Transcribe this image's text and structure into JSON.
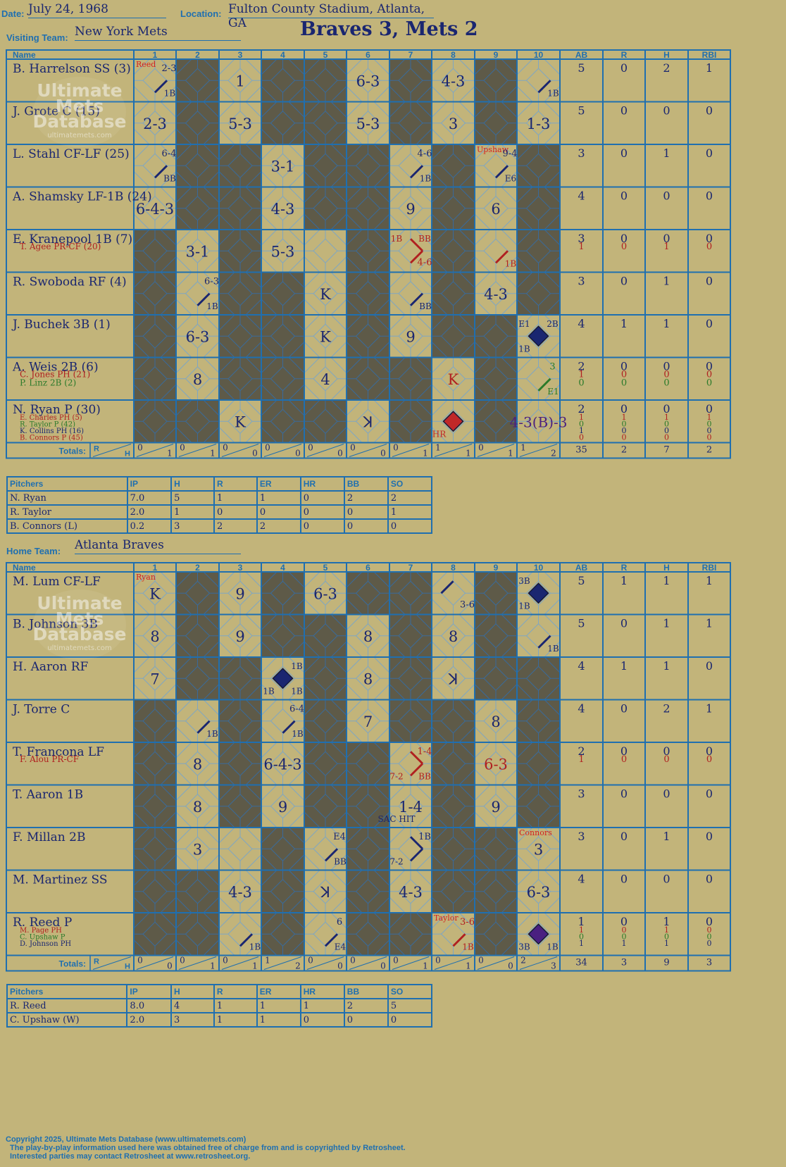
{
  "header": {
    "date_label": "Date:",
    "date": "July 24, 1968",
    "location_label": "Location:",
    "location": "Fulton County Stadium, Atlanta, GA",
    "visiting_label": "Visiting Team:",
    "visiting_team": "New York Mets",
    "home_label": "Home Team:",
    "home_team": "Atlanta Braves",
    "result": "Braves 3, Mets 2"
  },
  "watermark": {
    "line1": "Ultimate",
    "line2": "Mets",
    "line3": "Database",
    "url": "ultimatemets.com"
  },
  "grid_headers": {
    "name": "Name",
    "innings": [
      "1",
      "2",
      "3",
      "4",
      "5",
      "6",
      "7",
      "8",
      "9",
      "10"
    ],
    "stats": [
      "AB",
      "R",
      "H",
      "RBI"
    ],
    "totals": "Totals:",
    "r": "R",
    "h": "H"
  },
  "visitors": {
    "rows": [
      {
        "players": [
          {
            "name": "B. Harrelson SS (3)",
            "color": "#1a2670",
            "stats": [
              "5",
              "0",
              "2",
              "1"
            ]
          }
        ],
        "cells": [
          {
            "i": 1,
            "t": "2-3",
            "pos": "tr",
            "sub": "1B",
            "path": "1"
          },
          {
            "i": 3,
            "t": "1"
          },
          {
            "i": 6,
            "t": "6-3"
          },
          {
            "i": 8,
            "t": "4-3"
          },
          {
            "i": 10,
            "sub": "1B",
            "path": "1"
          }
        ],
        "notes": [
          {
            "i": 1,
            "t": "Reed",
            "color": "#d42020"
          }
        ]
      },
      {
        "players": [
          {
            "name": "J. Grote C (15)",
            "color": "#1a2670",
            "stats": [
              "5",
              "0",
              "0",
              "0"
            ]
          }
        ],
        "cells": [
          {
            "i": 1,
            "t": "2-3"
          },
          {
            "i": 3,
            "t": "5-3"
          },
          {
            "i": 6,
            "t": "5-3"
          },
          {
            "i": 8,
            "t": "3"
          },
          {
            "i": 10,
            "t": "1-3"
          }
        ]
      },
      {
        "players": [
          {
            "name": "L. Stahl CF-LF (25)",
            "color": "#1a2670",
            "stats": [
              "3",
              "0",
              "1",
              "0"
            ]
          }
        ],
        "cells": [
          {
            "i": 1,
            "t": "6-4",
            "pos": "tr",
            "sub": "BB",
            "path": "1"
          },
          {
            "i": 4,
            "t": "3-1"
          },
          {
            "i": 7,
            "t": "4-6",
            "pos": "tr",
            "sub": "1B",
            "path": "1"
          },
          {
            "i": 9,
            "t": "9-4",
            "pos": "tr",
            "sub": "E6",
            "path": "1"
          }
        ],
        "notes": [
          {
            "i": 9,
            "t": "Upshaw",
            "color": "#d42020"
          }
        ]
      },
      {
        "players": [
          {
            "name": "A. Shamsky LF-1B (24)",
            "color": "#1a2670",
            "stats": [
              "4",
              "0",
              "0",
              "0"
            ]
          }
        ],
        "cells": [
          {
            "i": 1,
            "t": "6-4-3"
          },
          {
            "i": 4,
            "t": "4-3"
          },
          {
            "i": 7,
            "t": "9"
          },
          {
            "i": 9,
            "t": "6"
          }
        ]
      },
      {
        "players": [
          {
            "name": "E. Kranepool 1B (7)",
            "color": "#1a2670",
            "stats": [
              "3",
              "0",
              "0",
              "0"
            ]
          },
          {
            "name": "T. Agee PR-CF (20)",
            "color": "#b02020",
            "stats": [
              "1",
              "0",
              "1",
              "0"
            ]
          }
        ],
        "cells": [
          {
            "i": 2,
            "t": "3-1"
          },
          {
            "i": 4,
            "t": "5-3"
          },
          {
            "i": 7,
            "t": "4-6",
            "pos": "br",
            "tl": "1B",
            "tr": "BB",
            "path": "2",
            "color": "#b02020"
          },
          {
            "i": 9,
            "sub": "1B",
            "path": "1",
            "color": "#b02020"
          }
        ]
      },
      {
        "players": [
          {
            "name": "R. Swoboda RF (4)",
            "color": "#1a2670",
            "stats": [
              "3",
              "0",
              "1",
              "0"
            ]
          }
        ],
        "cells": [
          {
            "i": 2,
            "t": "6-3",
            "pos": "tr",
            "sub": "1B",
            "path": "1"
          },
          {
            "i": 5,
            "t": "K"
          },
          {
            "i": 7,
            "sub": "BB",
            "path": "1"
          },
          {
            "i": 9,
            "t": "4-3"
          }
        ]
      },
      {
        "players": [
          {
            "name": "J. Buchek 3B (1)",
            "color": "#1a2670",
            "stats": [
              "4",
              "1",
              "1",
              "0"
            ]
          }
        ],
        "cells": [
          {
            "i": 2,
            "t": "6-3"
          },
          {
            "i": 5,
            "t": "K"
          },
          {
            "i": 7,
            "t": "9"
          },
          {
            "i": 10,
            "run": "#1a2670",
            "tl": "E1",
            "tr": "2B",
            "bl": "1B"
          }
        ]
      },
      {
        "players": [
          {
            "name": "A. Weis 2B (6)",
            "color": "#1a2670",
            "stats": [
              "2",
              "0",
              "0",
              "0"
            ]
          },
          {
            "name": "C. Jones PH (21)",
            "color": "#b02020",
            "stats": [
              "1",
              "0",
              "0",
              "0"
            ]
          },
          {
            "name": "P. Linz 2B (2)",
            "color": "#2a7a2a",
            "stats": [
              "0",
              "0",
              "0",
              "0"
            ]
          }
        ],
        "cells": [
          {
            "i": 2,
            "t": "8"
          },
          {
            "i": 5,
            "t": "4"
          },
          {
            "i": 8,
            "t": "K",
            "color": "#b02020"
          },
          {
            "i": 10,
            "t": "3",
            "pos": "tr",
            "sub": "E1",
            "path": "1",
            "color": "#2a7a2a"
          }
        ]
      },
      {
        "players": [
          {
            "name": "N. Ryan P (30)",
            "color": "#1a2670",
            "stats": [
              "2",
              "0",
              "0",
              "0"
            ]
          },
          {
            "name": "E. Charles PH (5)",
            "color": "#b02020",
            "stats": [
              "1",
              "1",
              "1",
              "1"
            ]
          },
          {
            "name": "R. Taylor P (42)",
            "color": "#2a7a2a",
            "stats": [
              "0",
              "0",
              "0",
              "0"
            ]
          },
          {
            "name": "K. Collins PH (16)",
            "color": "#1a2670",
            "stats": [
              "1",
              "0",
              "0",
              "0"
            ]
          },
          {
            "name": "B. Connors P (45)",
            "color": "#b02020",
            "stats": [
              "0",
              "0",
              "0",
              "0"
            ]
          }
        ],
        "cells": [
          {
            "i": 3,
            "t": "K"
          },
          {
            "i": 6,
            "t": "ꓘ"
          },
          {
            "i": 8,
            "run": "#c02828",
            "bl": "HR",
            "color": "#c02828"
          },
          {
            "i": 10,
            "t": "4-3(B)-3",
            "color": "#4a2080"
          }
        ]
      }
    ],
    "totals": [
      [
        "0",
        "1"
      ],
      [
        "0",
        "1"
      ],
      [
        "0",
        "0"
      ],
      [
        "0",
        "0"
      ],
      [
        "0",
        "0"
      ],
      [
        "0",
        "0"
      ],
      [
        "0",
        "1"
      ],
      [
        "1",
        "1"
      ],
      [
        "0",
        "1"
      ],
      [
        "1",
        "2"
      ]
    ],
    "total_stats": [
      "35",
      "2",
      "7",
      "2"
    ],
    "pitchers": {
      "headers": [
        "Pitchers",
        "IP",
        "H",
        "R",
        "ER",
        "HR",
        "BB",
        "SO"
      ],
      "rows": [
        [
          "N. Ryan",
          "7.0",
          "5",
          "1",
          "1",
          "0",
          "2",
          "2"
        ],
        [
          "R. Taylor",
          "2.0",
          "1",
          "0",
          "0",
          "0",
          "0",
          "1"
        ],
        [
          "B. Connors (L)",
          "0.2",
          "3",
          "2",
          "2",
          "0",
          "0",
          "0"
        ]
      ]
    }
  },
  "home": {
    "rows": [
      {
        "players": [
          {
            "name": "M. Lum CF-LF",
            "color": "#1a2670",
            "stats": [
              "5",
              "1",
              "1",
              "1"
            ]
          }
        ],
        "cells": [
          {
            "i": 1,
            "t": "K"
          },
          {
            "i": 3,
            "t": "9"
          },
          {
            "i": 5,
            "t": "6-3"
          },
          {
            "i": 8,
            "t": "3-6",
            "pos": "br",
            "path": "3"
          },
          {
            "i": 10,
            "run": "#1a2670",
            "tl": "3B",
            "bl": "1B"
          }
        ],
        "notes": [
          {
            "i": 1,
            "t": "Ryan",
            "color": "#d42020"
          }
        ]
      },
      {
        "players": [
          {
            "name": "B. Johnson 3B",
            "color": "#1a2670",
            "stats": [
              "5",
              "0",
              "1",
              "1"
            ]
          }
        ],
        "cells": [
          {
            "i": 1,
            "t": "8"
          },
          {
            "i": 3,
            "t": "9"
          },
          {
            "i": 6,
            "t": "8"
          },
          {
            "i": 8,
            "t": "8"
          },
          {
            "i": 10,
            "sub": "1B",
            "path": "1"
          }
        ]
      },
      {
        "players": [
          {
            "name": "H. Aaron RF",
            "color": "#1a2670",
            "stats": [
              "4",
              "1",
              "1",
              "0"
            ]
          }
        ],
        "cells": [
          {
            "i": 1,
            "t": "7"
          },
          {
            "i": 4,
            "run": "#1a2670",
            "tr": "1B",
            "bl": "1B",
            "br": "1B"
          },
          {
            "i": 6,
            "t": "8"
          },
          {
            "i": 8,
            "t": "ꓘ"
          }
        ]
      },
      {
        "players": [
          {
            "name": "J. Torre C",
            "color": "#1a2670",
            "stats": [
              "4",
              "0",
              "2",
              "1"
            ]
          }
        ],
        "cells": [
          {
            "i": 2,
            "sub": "1B",
            "path": "1"
          },
          {
            "i": 4,
            "t": "6-4",
            "pos": "tr",
            "sub": "1B",
            "path": "1"
          },
          {
            "i": 6,
            "t": "7"
          },
          {
            "i": 9,
            "t": "8"
          }
        ]
      },
      {
        "players": [
          {
            "name": "T. Francona LF",
            "color": "#1a2670",
            "stats": [
              "2",
              "0",
              "0",
              "0"
            ]
          },
          {
            "name": "F. Alou PR-CF",
            "color": "#b02020",
            "stats": [
              "1",
              "0",
              "0",
              "0"
            ]
          }
        ],
        "cells": [
          {
            "i": 2,
            "t": "8"
          },
          {
            "i": 4,
            "t": "6-4-3"
          },
          {
            "i": 7,
            "t": "1-4",
            "pos": "tr",
            "bl": "7-2",
            "br": "BB",
            "path": "2",
            "color": "#b02020"
          },
          {
            "i": 9,
            "t": "6-3",
            "color": "#b02020"
          }
        ]
      },
      {
        "players": [
          {
            "name": "T. Aaron 1B",
            "color": "#1a2670",
            "stats": [
              "3",
              "0",
              "0",
              "0"
            ]
          }
        ],
        "cells": [
          {
            "i": 2,
            "t": "8"
          },
          {
            "i": 4,
            "t": "9"
          },
          {
            "i": 7,
            "t": "1-4",
            "bl": "SAC HIT"
          },
          {
            "i": 9,
            "t": "9"
          }
        ]
      },
      {
        "players": [
          {
            "name": "F. Millan 2B",
            "color": "#1a2670",
            "stats": [
              "3",
              "0",
              "1",
              "0"
            ]
          }
        ],
        "cells": [
          {
            "i": 2,
            "t": "3"
          },
          {
            "i": 5,
            "t": "E4",
            "pos": "tr",
            "sub": "BB",
            "path": "1"
          },
          {
            "i": 7,
            "t": "1B",
            "pos": "tr",
            "bl": "7-2",
            "path": "2"
          },
          {
            "i": 10,
            "t": "3"
          }
        ],
        "notes": [
          {
            "i": 10,
            "t": "Connors",
            "color": "#d42020"
          }
        ]
      },
      {
        "players": [
          {
            "name": "M. Martinez SS",
            "color": "#1a2670",
            "stats": [
              "4",
              "0",
              "0",
              "0"
            ]
          }
        ],
        "cells": [
          {
            "i": 3,
            "t": "4-3"
          },
          {
            "i": 5,
            "t": "ꓘ"
          },
          {
            "i": 7,
            "t": "4-3"
          },
          {
            "i": 10,
            "t": "6-3"
          }
        ]
      },
      {
        "players": [
          {
            "name": "R. Reed P",
            "color": "#1a2670",
            "stats": [
              "1",
              "0",
              "1",
              "0"
            ]
          },
          {
            "name": "M. Page PH",
            "color": "#b02020",
            "stats": [
              "1",
              "0",
              "1",
              "0"
            ]
          },
          {
            "name": "C. Upshaw P",
            "color": "#2a7a2a",
            "stats": [
              "0",
              "0",
              "0",
              "0"
            ]
          },
          {
            "name": "D. Johnson PH",
            "color": "#1a2670",
            "stats": [
              "1",
              "1",
              "1",
              "0"
            ]
          }
        ],
        "cells": [
          {
            "i": 3,
            "sub": "1B",
            "path": "1"
          },
          {
            "i": 5,
            "t": "6",
            "pos": "tr",
            "sub": "E4",
            "path": "1"
          },
          {
            "i": 8,
            "t": "3-6",
            "pos": "tr",
            "sub": "1B",
            "path": "1",
            "color": "#b02020"
          },
          {
            "i": 10,
            "run": "#4a2080",
            "bl": "3B",
            "br": "1B"
          }
        ],
        "notes": [
          {
            "i": 8,
            "t": "Taylor",
            "color": "#d42020"
          }
        ]
      }
    ],
    "totals": [
      [
        "0",
        "0"
      ],
      [
        "0",
        "1"
      ],
      [
        "0",
        "1"
      ],
      [
        "1",
        "2"
      ],
      [
        "0",
        "0"
      ],
      [
        "0",
        "0"
      ],
      [
        "0",
        "1"
      ],
      [
        "0",
        "1"
      ],
      [
        "0",
        "0"
      ],
      [
        "2",
        "3"
      ]
    ],
    "total_stats": [
      "34",
      "3",
      "9",
      "3"
    ],
    "pitchers": {
      "headers": [
        "Pitchers",
        "IP",
        "H",
        "R",
        "ER",
        "HR",
        "BB",
        "SO"
      ],
      "rows": [
        [
          "R. Reed",
          "8.0",
          "4",
          "1",
          "1",
          "1",
          "2",
          "5"
        ],
        [
          "C. Upshaw (W)",
          "2.0",
          "3",
          "1",
          "1",
          "0",
          "0",
          "0"
        ]
      ]
    }
  },
  "dark_cells": {
    "visitors": [
      [
        2,
        4,
        5,
        7,
        9
      ],
      [
        2,
        4,
        5,
        7,
        9
      ],
      [
        2,
        3,
        5,
        6,
        8,
        10
      ],
      [
        2,
        3,
        5,
        6,
        8,
        10
      ],
      [
        1,
        3,
        6,
        8,
        10
      ],
      [
        1,
        3,
        4,
        6,
        8,
        10
      ],
      [
        1,
        3,
        4,
        6,
        8,
        9
      ],
      [
        1,
        3,
        4,
        6,
        7,
        9
      ],
      [
        1,
        2,
        4,
        5,
        7,
        9
      ]
    ],
    "home": [
      [
        2,
        4,
        6,
        7,
        9
      ],
      [
        2,
        4,
        5,
        7,
        9
      ],
      [
        2,
        3,
        5,
        7,
        9,
        10
      ],
      [
        1,
        3,
        5,
        7,
        8,
        10
      ],
      [
        1,
        3,
        5,
        6,
        8,
        10
      ],
      [
        1,
        3,
        5,
        6,
        8,
        10
      ],
      [
        1,
        4,
        6,
        8,
        9
      ],
      [
        1,
        2,
        4,
        6,
        8,
        9
      ],
      [
        1,
        2,
        4,
        6,
        7,
        9
      ]
    ]
  },
  "copyright": {
    "line1": "Copyright 2025, Ultimate Mets Database (www.ultimatemets.com)",
    "line2": "The play-by-play information used here was obtained free of charge from and is copyrighted by Retrosheet.",
    "line3": "Interested parties may contact Retrosheet at www.retrosheet.org."
  }
}
